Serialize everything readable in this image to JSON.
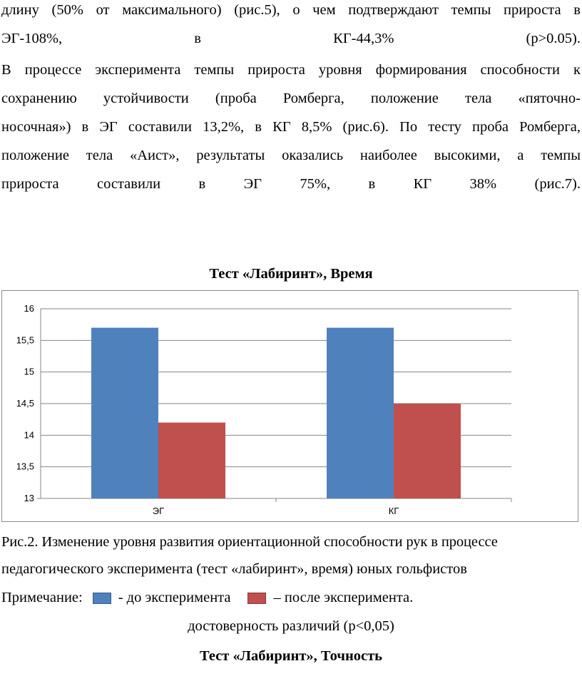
{
  "paragraph1": {
    "lines": [
      "длину (50% от максимального) (рис.5), о чем подтверждают темпы прироста в",
      "ЭГ-108%, в КГ-44,3% (р>0.05)."
    ]
  },
  "paragraph2": {
    "lines": [
      "В процессе эксперимента темпы прироста уровня формирования способности к",
      "сохранению устойчивости (проба Ромберга, положение тела «пяточно-",
      "носочная») в ЭГ составили 13,2%, в КГ 8,5% (рис.6). По тесту проба Ромберга,",
      "положение тела «Аист», результаты оказались наиболее высокими, а темпы",
      "прироста составили в ЭГ 75%, в КГ 38% (рис.7)."
    ]
  },
  "chart_heading": "Тест «Лабиринт», Время",
  "chart_data": {
    "type": "bar",
    "title": "",
    "categories": [
      "ЭГ",
      "КГ"
    ],
    "series": [
      {
        "values": [
          15.7,
          15.7
        ],
        "color": "#4f81bd"
      },
      {
        "values": [
          14.2,
          14.5
        ],
        "color": "#c0504d"
      }
    ],
    "ylim": [
      13,
      16
    ],
    "yticks": [
      "13",
      "13,5",
      "14",
      "14,5",
      "15",
      "15,5",
      "16"
    ],
    "ytick_values": [
      13,
      13.5,
      14,
      14.5,
      15,
      15.5,
      16
    ],
    "grid": true,
    "xlabel": "",
    "ylabel": ""
  },
  "caption": {
    "line1": "Рис.2. Изменение уровня развития ориентационной способности рук в процессе",
    "line2": "педагогического эксперимента (тест «лабиринт», время) юных гольфистов",
    "note_label": "Примечание:",
    "before_label": "- до эксперимента",
    "after_label": "– после эксперимента.",
    "before_color": "#4f81bd",
    "after_color": "#c0504d"
  },
  "significance": "достоверность различий (р<0,05)",
  "next_heading": "Тест «Лабиринт», Точность"
}
